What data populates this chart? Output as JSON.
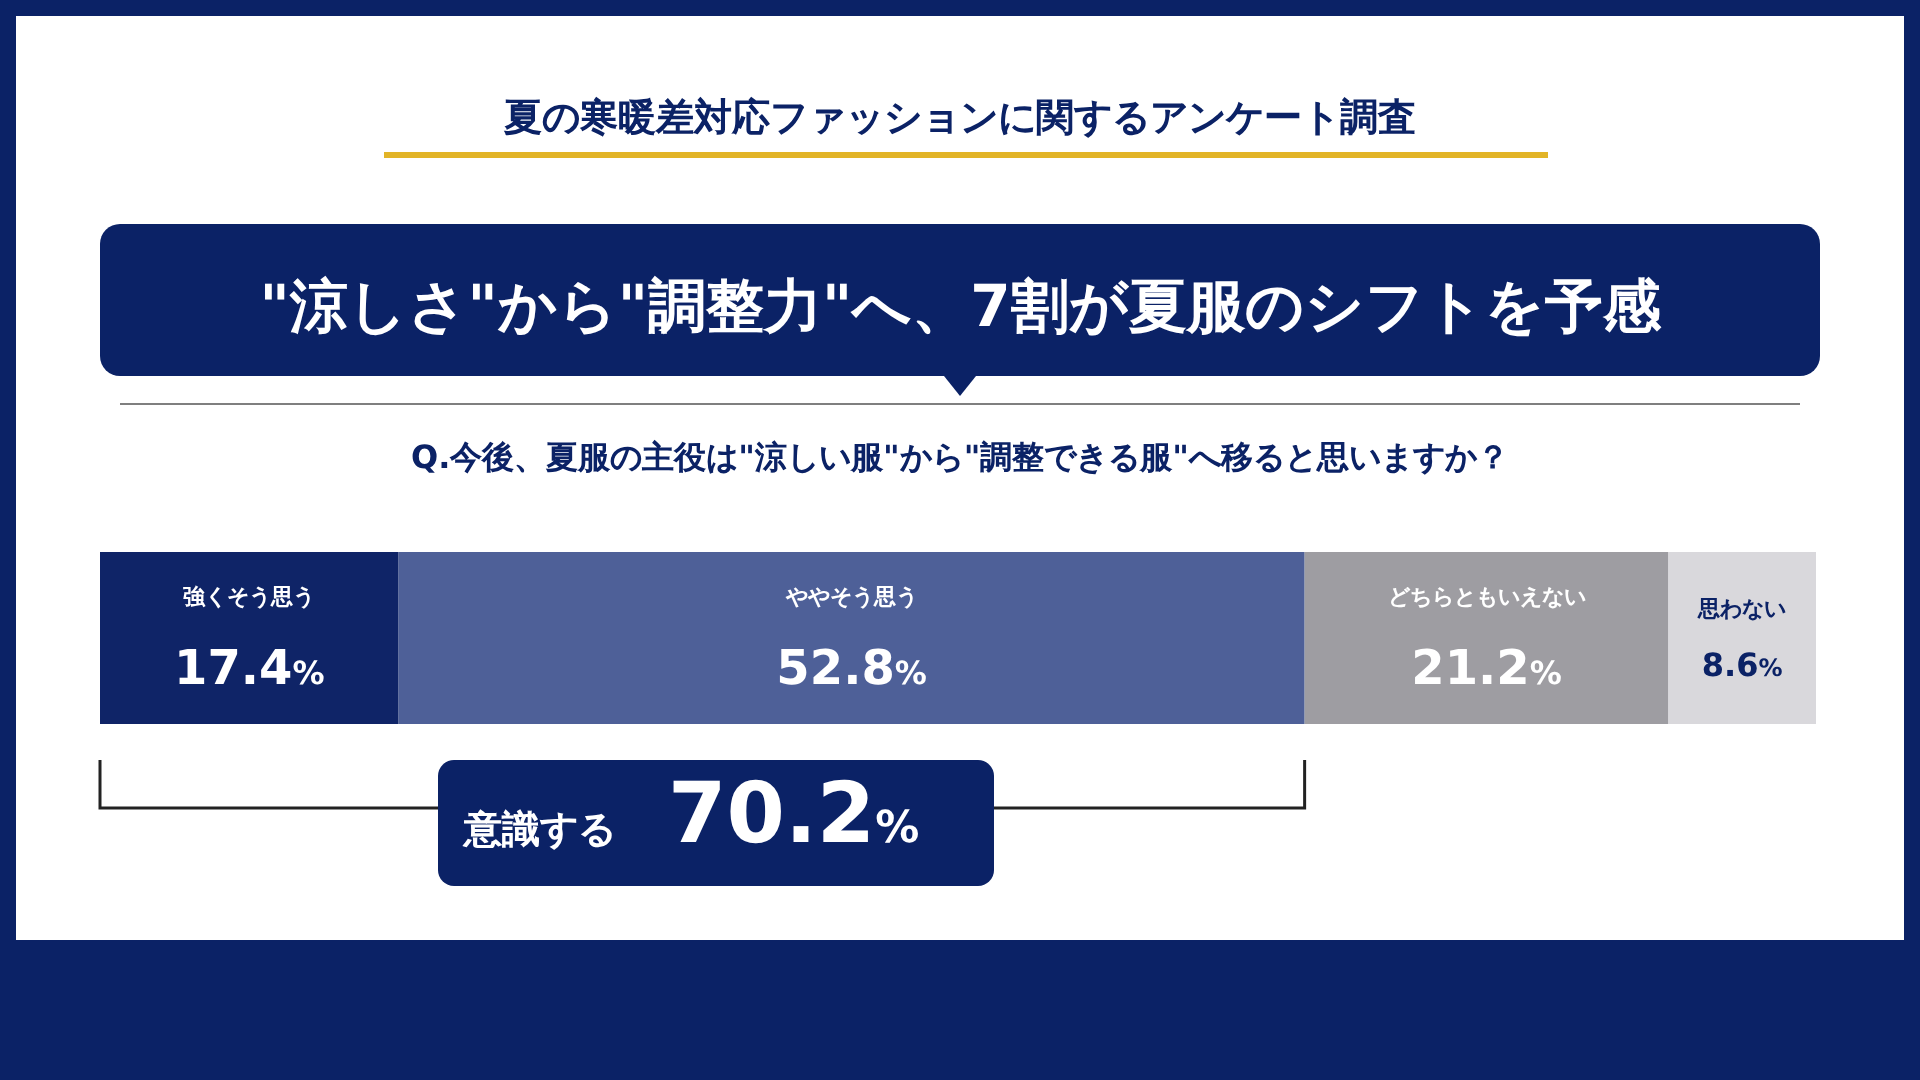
{
  "chart_data": {
    "type": "bar",
    "orientation": "horizontal",
    "stacked": true,
    "title": "夏の寒暖差対応ファッションに関するアンケート調査",
    "subtitle": "\"涼しさ\"から\"調整力\"へ、7割が夏服のシフトを予感",
    "categories": [
      null
    ],
    "series": [
      {
        "name": "強くそう思う",
        "color": "#0f2467",
        "values": [
          17.4
        ],
        "value_labels": [
          "17.4%"
        ]
      },
      {
        "name": "ややそう思う",
        "color": "#4e6098",
        "values": [
          52.8
        ],
        "value_labels": [
          "52.8%"
        ]
      },
      {
        "name": "どちらともいえない",
        "color": "#9e9da2",
        "values": [
          21.2
        ],
        "value_labels": [
          "21.2%"
        ]
      },
      {
        "name": "思わない",
        "color": "#d9d8dc",
        "values": [
          8.6
        ],
        "value_labels": [
          "8.6%"
        ]
      }
    ],
    "annotations": [
      "Q.今後、夏服の主役は\"涼しい服\"から\"調整できる服\"へ移ると思いますか？",
      "意識する 70.2%"
    ]
  }
}
